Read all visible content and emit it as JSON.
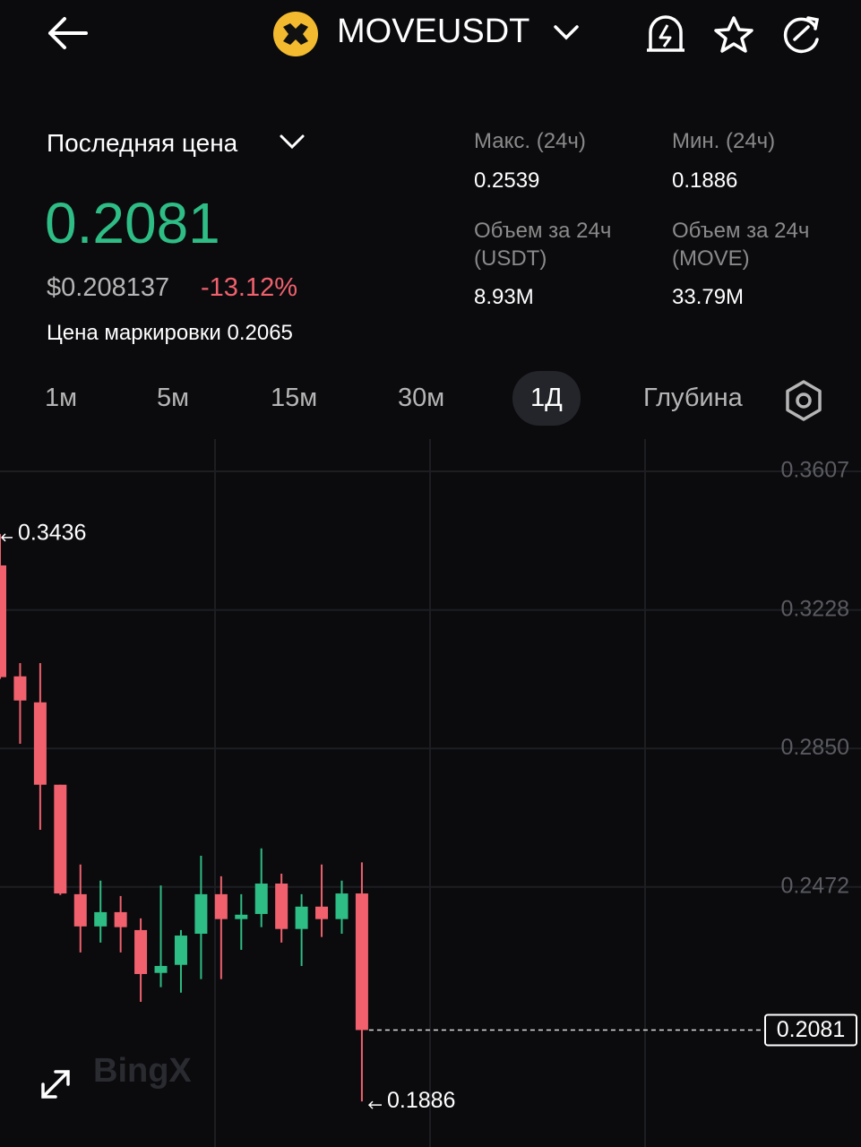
{
  "header": {
    "symbol": "MOVEUSDT"
  },
  "price_panel": {
    "label": "Последняя цена",
    "last_price": "0.2081",
    "usd_price": "$0.208137",
    "change": "-13.12%",
    "mark_price": "Цена маркировки 0.2065"
  },
  "stats": [
    {
      "label": "Макс. (24ч)",
      "value": "0.2539"
    },
    {
      "label": "Мин. (24ч)",
      "value": "0.1886"
    },
    {
      "label": "Объем за 24ч (USDT)",
      "value": "8.93M"
    },
    {
      "label": "Объем за 24ч (MOVE)",
      "value": "33.79M"
    }
  ],
  "tabs": [
    "1м",
    "5м",
    "15м",
    "30м",
    "1Д",
    "Глубина"
  ],
  "active_tab": 4,
  "chart_data": {
    "type": "candlestick",
    "watermark": "BingX",
    "up_color": "#2ebd85",
    "down_color": "#f0616d",
    "ylim": [
      0.1786,
      0.3695
    ],
    "yticks": [
      0.3607,
      0.3228,
      {
        "value": 0.285,
        "label": "0.2850"
      },
      0.2472
    ],
    "grid": true,
    "open": [
      0.335,
      0.3047,
      0.2976,
      0.2751,
      0.2452,
      0.2364,
      0.2403,
      0.2354,
      0.2237,
      0.2259,
      0.2344,
      0.2452,
      0.2384,
      0.2398,
      0.2481,
      0.2357,
      0.2418,
      0.2384,
      0.2454
    ],
    "high": [
      0.3436,
      0.3083,
      0.3083,
      0.2751,
      0.2533,
      0.2489,
      0.2447,
      0.2386,
      0.2476,
      0.2354,
      0.2557,
      0.2501,
      0.2452,
      0.2577,
      0.2508,
      0.2452,
      0.2533,
      0.2489,
      0.2539
    ],
    "low": [
      0.304,
      0.2863,
      0.2628,
      0.245,
      0.2293,
      0.232,
      0.2293,
      0.2158,
      0.2198,
      0.2183,
      0.222,
      0.222,
      0.23,
      0.2362,
      0.232,
      0.2256,
      0.2335,
      0.2344,
      0.1886
    ],
    "close": [
      0.3045,
      0.2981,
      0.2751,
      0.2454,
      0.2364,
      0.2403,
      0.2362,
      0.2234,
      0.2256,
      0.2339,
      0.2452,
      0.2384,
      0.2396,
      0.2481,
      0.2357,
      0.2418,
      0.2384,
      0.2454,
      0.2081
    ],
    "max_label": 0.3436,
    "min_label": 0.1886,
    "last_price": 0.2081
  }
}
